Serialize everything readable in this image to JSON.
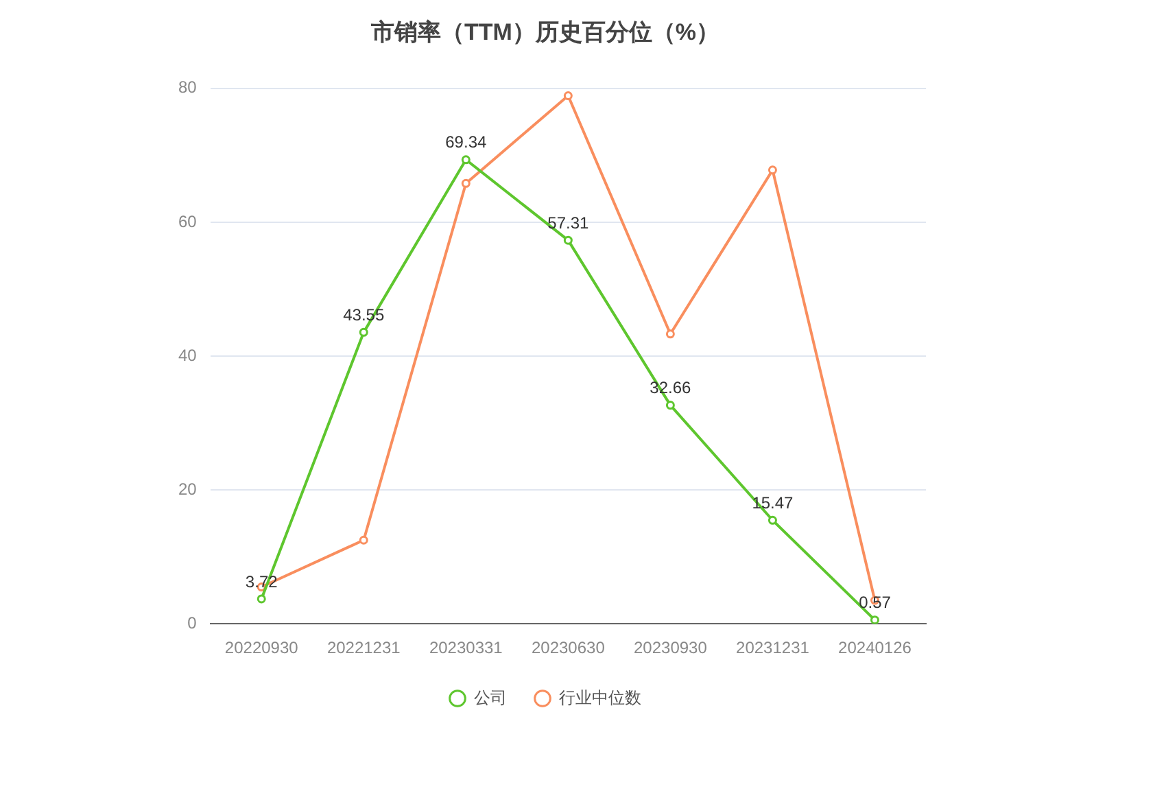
{
  "chart_data": {
    "type": "line",
    "title": "市销率（TTM）历史百分位（%）",
    "categories": [
      "20220930",
      "20221231",
      "20230331",
      "20230630",
      "20230930",
      "20231231",
      "20240126"
    ],
    "series": [
      {
        "name": "公司",
        "color": "#5ec62e",
        "values": [
          3.72,
          43.55,
          69.34,
          57.31,
          32.66,
          15.47,
          0.57
        ],
        "value_labels": [
          "3.72",
          "43.55",
          "69.34",
          "57.31",
          "32.66",
          "15.47",
          "0.57"
        ]
      },
      {
        "name": "行业中位数",
        "color": "#f98e5e",
        "values": [
          5.5,
          12.5,
          65.8,
          78.9,
          43.3,
          67.8,
          3.5
        ]
      }
    ],
    "ylim": [
      0,
      80
    ],
    "yticks": [
      0,
      20,
      40,
      60,
      80
    ],
    "grid": "y",
    "legend": "bottom",
    "marker": "circle",
    "line_style": "solid"
  }
}
